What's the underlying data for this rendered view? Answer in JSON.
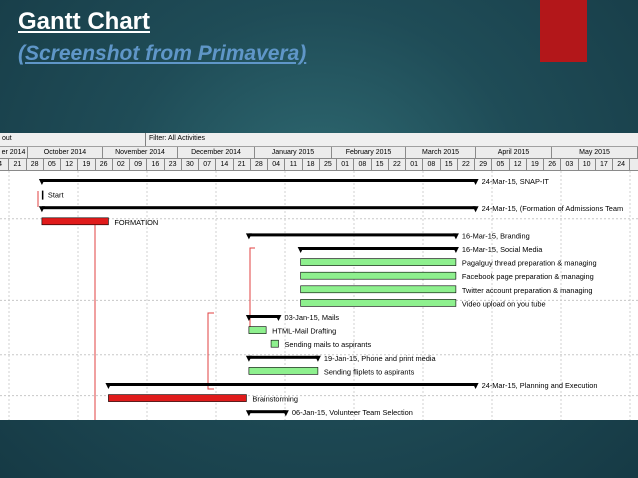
{
  "slide": {
    "title": "Gantt Chart",
    "subtitle": "(Screenshot from Primavera)"
  },
  "colors": {
    "summary_bar": "#000000",
    "critical_bar": "#e01b1b",
    "normal_bar": "#8ef08e",
    "link_line": "#e04040",
    "accent_block": "#b3171a"
  },
  "toolbar": {
    "left_label": "out",
    "filter_label": "Filter: All Activities"
  },
  "months": [
    "er 2014",
    "October 2014",
    "November 2014",
    "December 2014",
    "January 2015",
    "February 2015",
    "March 2015",
    "April 2015",
    "May 2015"
  ],
  "days": [
    "4",
    "21",
    "28",
    "05",
    "12",
    "19",
    "26",
    "02",
    "09",
    "16",
    "23",
    "30",
    "07",
    "14",
    "21",
    "28",
    "04",
    "11",
    "18",
    "25",
    "01",
    "08",
    "15",
    "22",
    "01",
    "08",
    "15",
    "22",
    "29",
    "05",
    "12",
    "19",
    "26",
    "03",
    "10",
    "17",
    "24"
  ],
  "chart_data": {
    "type": "gantt",
    "time_axis": "Sep 2014 – May 2015 (weekly)",
    "tasks": [
      {
        "label": "24-Mar-15, SNAP-IT",
        "kind": "summary",
        "start": "2014-09-29",
        "end": "2015-03-24",
        "label_side": "right"
      },
      {
        "label": "Start",
        "kind": "milestone",
        "start": "2014-09-29",
        "end": "2014-09-29",
        "label_side": "right"
      },
      {
        "label": "24-Mar-15, (Formation of Admissions Team",
        "kind": "summary",
        "start": "2014-09-29",
        "end": "2015-03-24",
        "label_side": "right"
      },
      {
        "label": "FORMATION",
        "kind": "critical",
        "start": "2014-09-29",
        "end": "2014-10-26",
        "label_side": "right"
      },
      {
        "label": "16-Mar-15, Branding",
        "kind": "summary",
        "start": "2014-12-22",
        "end": "2015-03-16",
        "label_side": "right"
      },
      {
        "label": "16-Mar-15, Social Media",
        "kind": "summary",
        "start": "2015-01-12",
        "end": "2015-03-16",
        "label_side": "right"
      },
      {
        "label": "Pagalguy thread preparation & managing",
        "kind": "task",
        "start": "2015-01-12",
        "end": "2015-03-16",
        "label_side": "right"
      },
      {
        "label": "Facebook page preparation & managing",
        "kind": "task",
        "start": "2015-01-12",
        "end": "2015-03-16",
        "label_side": "right"
      },
      {
        "label": "Twitter account preparation & managing",
        "kind": "task",
        "start": "2015-01-12",
        "end": "2015-03-16",
        "label_side": "right"
      },
      {
        "label": "Video upload on you tube",
        "kind": "task",
        "start": "2015-01-12",
        "end": "2015-03-16",
        "label_side": "right"
      },
      {
        "label": "03-Jan-15, Mails",
        "kind": "summary",
        "start": "2014-12-22",
        "end": "2015-01-03",
        "label_side": "right"
      },
      {
        "label": "HTML-Mail Drafting",
        "kind": "task",
        "start": "2014-12-22",
        "end": "2014-12-29",
        "label_side": "right"
      },
      {
        "label": "Sending mails to aspirants",
        "kind": "task",
        "start": "2014-12-31",
        "end": "2015-01-03",
        "label_side": "right"
      },
      {
        "label": "19-Jan-15, Phone and print media",
        "kind": "summary",
        "start": "2014-12-22",
        "end": "2015-01-19",
        "label_side": "right"
      },
      {
        "label": "Sending fliplets to aspirants",
        "kind": "task",
        "start": "2014-12-22",
        "end": "2015-01-19",
        "label_side": "right"
      },
      {
        "label": "24-Mar-15, Planning and Execution",
        "kind": "summary",
        "start": "2014-10-26",
        "end": "2015-03-24",
        "label_side": "right"
      },
      {
        "label": "Brainstorming",
        "kind": "critical",
        "start": "2014-10-26",
        "end": "2014-12-21",
        "label_side": "right"
      },
      {
        "label": "06-Jan-15, Volunteer Team Selection",
        "kind": "summary",
        "start": "2014-12-22",
        "end": "2015-01-06",
        "label_side": "right"
      }
    ]
  }
}
